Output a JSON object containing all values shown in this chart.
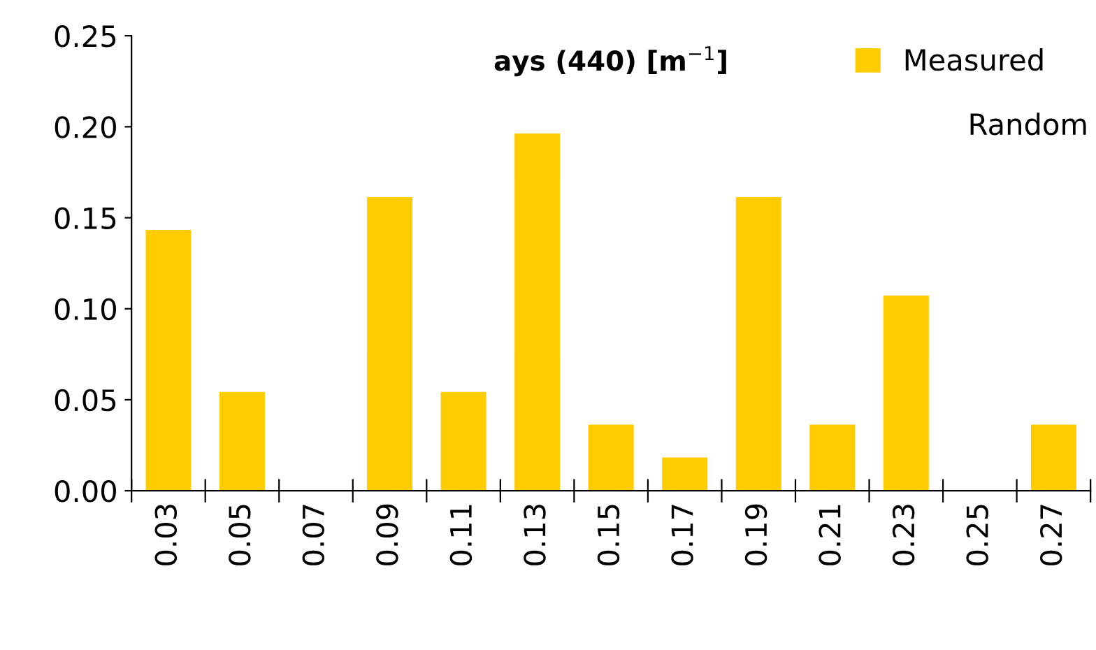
{
  "chart_data": {
    "type": "bar",
    "title": "ays (440) [m$^{−1}$]",
    "categories": [
      "0.03",
      "0.05",
      "0.07",
      "0.09",
      "0.11",
      "0.13",
      "0.15",
      "0.17",
      "0.19",
      "0.21",
      "0.23",
      "0.25",
      "0.27"
    ],
    "series": [
      {
        "name": "Measured",
        "color": "#ffcc00",
        "values": [
          0.143,
          0.054,
          0,
          0.161,
          0.054,
          0.196,
          0.036,
          0.018,
          0.161,
          0.036,
          0.107,
          0,
          0.036
        ]
      }
    ],
    "annotations": [
      "Random"
    ],
    "ylim": [
      0,
      0.25
    ],
    "yticks": [
      {
        "value": 0,
        "label": "0.00"
      },
      {
        "value": 0.05,
        "label": "0.05"
      },
      {
        "value": 0.1,
        "label": "0.10"
      },
      {
        "value": 0.15,
        "label": "0.15"
      },
      {
        "value": 0.2,
        "label": "0.20"
      },
      {
        "value": 0.25,
        "label": "0.25"
      }
    ],
    "grid": false,
    "legend": "top right"
  }
}
